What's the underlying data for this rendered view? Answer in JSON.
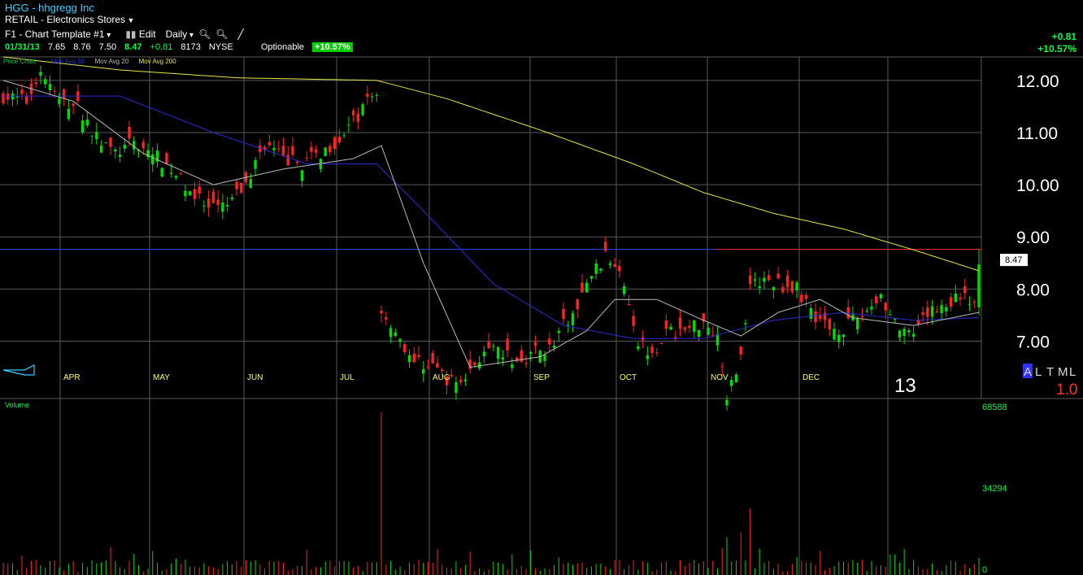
{
  "header": {
    "title": "HGG - hhgregg Inc",
    "industry": "RETAIL - Electronics Stores",
    "template_label": "F1 - Chart Template #1",
    "edit_label": "Edit",
    "period_label": "Daily",
    "exchange": "NYSE",
    "optionable": "Optionable",
    "pct_badge": "+10.57%",
    "change_abs": "+0.81",
    "change_pct": "+10.57%"
  },
  "quote": {
    "date": "01/31/13",
    "open": "7.65",
    "high": "8.76",
    "low": "7.50",
    "close": "8.47",
    "change": "+0.81",
    "volume": "8173"
  },
  "chart_data": {
    "type": "candlestick",
    "legend": [
      "Price Chart",
      "Mov Avg 50",
      "Mov Avg 20",
      "Mov Avg 200"
    ],
    "colors": {
      "up": "#00dd00",
      "down": "#ff2222",
      "ma50": "#2b2bd6",
      "ma20": "#bbbbbb",
      "ma200": "#e6e64d",
      "hline_blue": "#2a4cff",
      "hline_red": "#ff3030",
      "grid": "#5a5a5a"
    },
    "price_ticks": [
      "12.00",
      "11.00",
      "10.00",
      "9.00",
      "8.00",
      "7.00"
    ],
    "price_tick_values": [
      12,
      11,
      10,
      9,
      8,
      7
    ],
    "ylim": [
      5.9,
      12.45
    ],
    "months": [
      "APR",
      "MAY",
      "JUN",
      "JUL",
      "AUG",
      "SEP",
      "OCT",
      "NOV",
      "DEC"
    ],
    "year_label": "13",
    "last_price_label": "8.47",
    "hline_value": 8.76,
    "corner_letters": [
      "A",
      "L",
      "T",
      "M",
      "L"
    ],
    "scale_label": "1.0",
    "volume_label": "Volume",
    "volume_ticks": [
      "68588",
      "34294",
      "0"
    ],
    "volume_tick_values": [
      68588,
      34294,
      0
    ],
    "volume_max": 68588,
    "days": 210,
    "keypoints": [
      [
        0,
        11.7
      ],
      [
        5,
        11.6
      ],
      [
        8,
        12.2
      ],
      [
        12,
        11.6
      ],
      [
        16,
        11.5
      ],
      [
        20,
        10.9
      ],
      [
        24,
        10.6
      ],
      [
        28,
        10.8
      ],
      [
        32,
        10.6
      ],
      [
        36,
        10.3
      ],
      [
        40,
        9.9
      ],
      [
        44,
        9.5
      ],
      [
        48,
        9.6
      ],
      [
        52,
        10.0
      ],
      [
        56,
        10.8
      ],
      [
        60,
        10.5
      ],
      [
        64,
        10.4
      ],
      [
        68,
        10.6
      ],
      [
        72,
        10.9
      ],
      [
        76,
        11.3
      ],
      [
        78,
        11.6
      ],
      [
        80,
        11.75
      ],
      [
        81,
        7.6
      ],
      [
        84,
        7.2
      ],
      [
        88,
        6.6
      ],
      [
        92,
        6.55
      ],
      [
        96,
        6.2
      ],
      [
        99,
        6.3
      ],
      [
        102,
        6.7
      ],
      [
        106,
        6.8
      ],
      [
        110,
        6.6
      ],
      [
        114,
        6.8
      ],
      [
        118,
        6.9
      ],
      [
        120,
        7.3
      ],
      [
        123,
        7.6
      ],
      [
        126,
        8.3
      ],
      [
        129,
        8.6
      ],
      [
        132,
        8.45
      ],
      [
        134,
        7.8
      ],
      [
        136,
        7.0
      ],
      [
        139,
        6.8
      ],
      [
        142,
        7.15
      ],
      [
        146,
        7.2
      ],
      [
        150,
        7.4
      ],
      [
        153,
        7.1
      ],
      [
        155,
        6.0
      ],
      [
        158,
        6.7
      ],
      [
        160,
        8.2
      ],
      [
        163,
        8.15
      ],
      [
        166,
        8.1
      ],
      [
        170,
        8.0
      ],
      [
        174,
        7.5
      ],
      [
        177,
        7.25
      ],
      [
        180,
        7.25
      ],
      [
        184,
        7.5
      ],
      [
        188,
        7.9
      ],
      [
        190,
        7.5
      ],
      [
        193,
        7.1
      ],
      [
        195,
        7.1
      ],
      [
        198,
        7.5
      ],
      [
        200,
        7.65
      ],
      [
        203,
        7.75
      ],
      [
        206,
        7.95
      ],
      [
        208,
        7.66
      ],
      [
        209,
        8.47
      ]
    ],
    "ma200": [
      [
        0,
        12.45
      ],
      [
        25,
        12.2
      ],
      [
        50,
        12.05
      ],
      [
        80,
        12.0
      ],
      [
        95,
        11.65
      ],
      [
        115,
        11.05
      ],
      [
        135,
        10.4
      ],
      [
        150,
        9.85
      ],
      [
        165,
        9.45
      ],
      [
        180,
        9.15
      ],
      [
        195,
        8.75
      ],
      [
        209,
        8.35
      ]
    ],
    "ma50": [
      [
        0,
        11.7
      ],
      [
        25,
        11.7
      ],
      [
        45,
        11.0
      ],
      [
        65,
        10.4
      ],
      [
        80,
        10.4
      ],
      [
        90,
        9.5
      ],
      [
        105,
        8.1
      ],
      [
        120,
        7.3
      ],
      [
        135,
        7.05
      ],
      [
        150,
        7.05
      ],
      [
        165,
        7.4
      ],
      [
        180,
        7.55
      ],
      [
        195,
        7.4
      ],
      [
        209,
        7.45
      ]
    ],
    "ma20": [
      [
        0,
        12.0
      ],
      [
        15,
        11.6
      ],
      [
        30,
        10.6
      ],
      [
        45,
        10.0
      ],
      [
        60,
        10.3
      ],
      [
        75,
        10.5
      ],
      [
        81,
        10.75
      ],
      [
        90,
        8.5
      ],
      [
        100,
        6.5
      ],
      [
        115,
        6.7
      ],
      [
        125,
        7.2
      ],
      [
        131,
        7.8
      ],
      [
        140,
        7.8
      ],
      [
        150,
        7.4
      ],
      [
        158,
        7.1
      ],
      [
        166,
        7.55
      ],
      [
        175,
        7.8
      ],
      [
        182,
        7.45
      ],
      [
        195,
        7.3
      ],
      [
        209,
        7.55
      ]
    ]
  }
}
